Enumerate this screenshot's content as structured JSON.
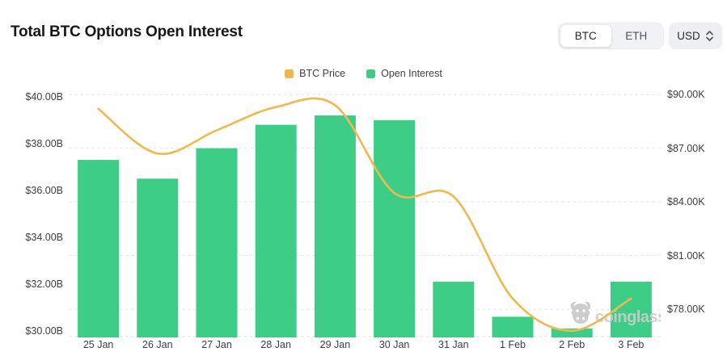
{
  "header": {
    "title": "Total BTC Options Open Interest",
    "coin_toggle": {
      "options": [
        "BTC",
        "ETH"
      ],
      "selected": "BTC"
    },
    "currency_select": {
      "value": "USD"
    }
  },
  "legend": {
    "items": [
      {
        "label": "BTC Price",
        "color": "#edb751"
      },
      {
        "label": "Open Interest",
        "color": "#3ecd86"
      }
    ]
  },
  "watermark": {
    "brand": "coinglass"
  },
  "colors": {
    "bar": "#3ecd86",
    "line": "#efb851",
    "gridline": "#e8e8e8",
    "axis_text": "#3b3e43",
    "watermark_gray": "#c9c9c9"
  },
  "chart_data": {
    "type": "bar",
    "title": "Total BTC Options Open Interest",
    "categories": [
      "25 Jan",
      "26 Jan",
      "27 Jan",
      "28 Jan",
      "29 Jan",
      "30 Jan",
      "31 Jan",
      "1 Feb",
      "2 Feb",
      "3 Feb"
    ],
    "series": [
      {
        "name": "Open Interest",
        "type": "bar",
        "axis": "left",
        "unit": "USD billions",
        "color": "#3ecd86",
        "values": [
          37.3,
          36.5,
          37.8,
          38.8,
          39.2,
          39.0,
          32.1,
          30.6,
          30.1,
          32.1
        ]
      },
      {
        "name": "BTC Price",
        "type": "line",
        "axis": "right",
        "unit": "USD thousands",
        "color": "#efb851",
        "smooth": true,
        "values": [
          89.2,
          86.7,
          88.0,
          89.3,
          89.4,
          84.5,
          84.3,
          78.6,
          76.8,
          78.6
        ]
      }
    ],
    "left_axis": {
      "tick_labels": [
        "$40.00B",
        "$38.00B",
        "$36.00B",
        "$34.00B",
        "$32.00B",
        "$30.00B"
      ],
      "tick_values": [
        40,
        38,
        36,
        34,
        32,
        30
      ],
      "range": [
        29.75,
        40.34
      ]
    },
    "right_axis": {
      "tick_labels": [
        "$90.00K",
        "$87.00K",
        "$84.00K",
        "$81.00K",
        "$78.00K"
      ],
      "tick_values": [
        90,
        87,
        84,
        81,
        78
      ],
      "range": [
        76.47,
        90.32
      ]
    },
    "grid": {
      "horizontal_dashed": true
    },
    "legend_position": "top-center"
  }
}
